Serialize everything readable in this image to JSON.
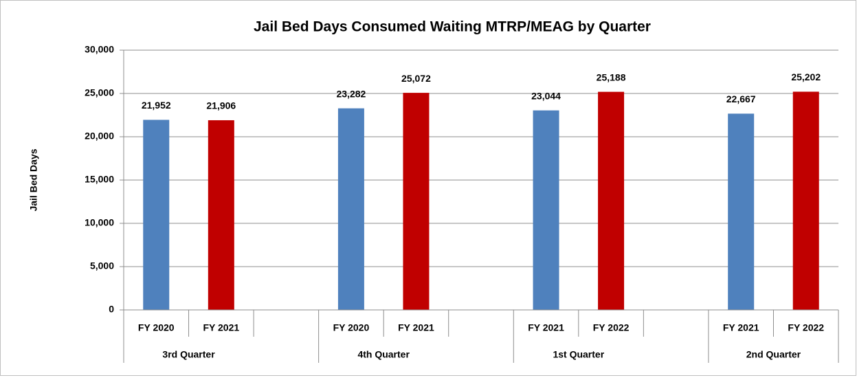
{
  "chart_data": {
    "type": "grouped-bar",
    "title": "Jail Bed Days Consumed Waiting MTRP/MEAG by Quarter",
    "y_label": "Jail Bed Days",
    "colors": [
      "#4f81bd",
      "#c00000"
    ],
    "grid": true,
    "ylim": [
      0,
      30000
    ],
    "yticks": [
      0,
      {
        "value": 5000,
        "label": "5,000"
      },
      {
        "value": 10000,
        "label": "10,000"
      },
      {
        "value": 15000,
        "label": "15,000"
      },
      {
        "value": 20000,
        "label": "20,000"
      },
      {
        "value": 25000,
        "label": "25,000"
      },
      {
        "value": 30000,
        "label": "30,000"
      }
    ],
    "groups": [
      {
        "label": "3rd Quarter",
        "bars": [
          {
            "label": "FY 2020",
            "value": 21952,
            "value_label": "21,952"
          },
          {
            "label": "FY 2021",
            "value": 21906,
            "value_label": "21,906"
          }
        ]
      },
      {
        "label": "4th Quarter",
        "bars": [
          {
            "label": "FY 2020",
            "value": 23282,
            "value_label": "23,282"
          },
          {
            "label": "FY 2021",
            "value": 25072,
            "value_label": "25,072"
          }
        ]
      },
      {
        "label": "1st Quarter",
        "bars": [
          {
            "label": "FY 2021",
            "value": 23044,
            "value_label": "23,044"
          },
          {
            "label": "FY 2022",
            "value": 25188,
            "value_label": "25,188"
          }
        ]
      },
      {
        "label": "2nd Quarter",
        "bars": [
          {
            "label": "FY 2021",
            "value": 22667,
            "value_label": "22,667"
          },
          {
            "label": "FY 2022",
            "value": 25202,
            "value_label": "25,202"
          }
        ]
      }
    ]
  }
}
